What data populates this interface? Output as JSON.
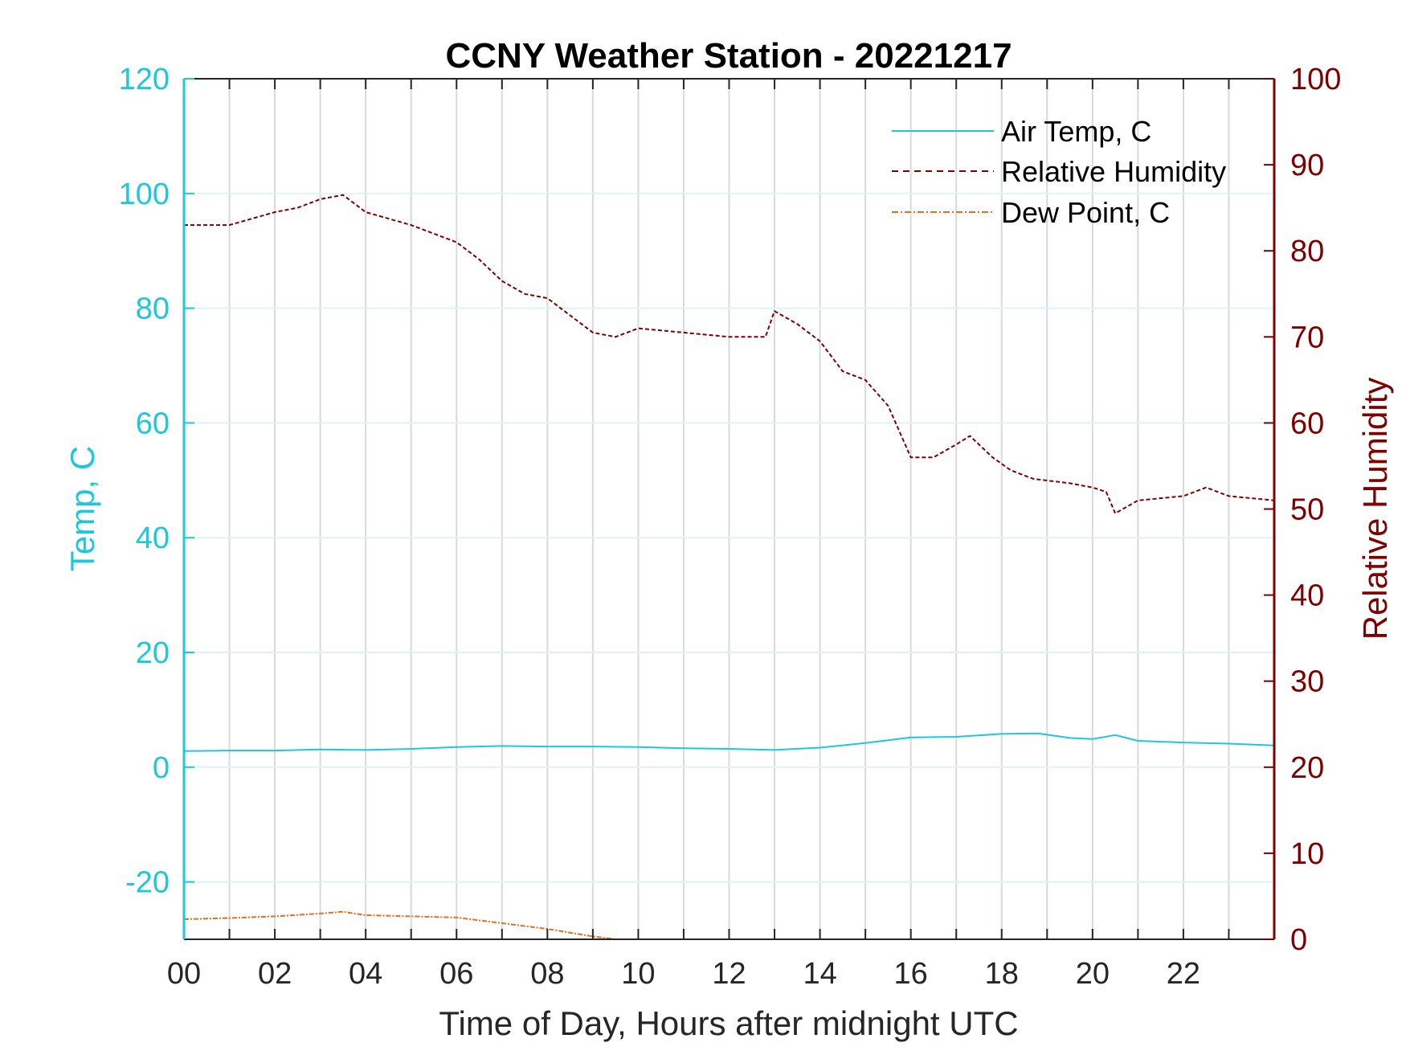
{
  "chart_data": {
    "type": "line",
    "title": "CCNY Weather Station - 20221217",
    "xlabel": "Time of Day, Hours after midnight UTC",
    "ylabel_left": "Temp, C",
    "ylabel_right": "Relative Humidity",
    "xlim": [
      0,
      24
    ],
    "ylim_left": [
      -30,
      120
    ],
    "ylim_right": [
      0,
      100
    ],
    "x_ticks": [
      0,
      2,
      4,
      6,
      8,
      10,
      12,
      14,
      16,
      18,
      20,
      22
    ],
    "x_tick_labels": [
      "00",
      "02",
      "04",
      "06",
      "08",
      "10",
      "12",
      "14",
      "16",
      "18",
      "20",
      "22"
    ],
    "y_left_ticks": [
      -20,
      0,
      20,
      40,
      60,
      80,
      100,
      120
    ],
    "y_left_tick_labels": [
      "-20",
      "0",
      "20",
      "40",
      "60",
      "80",
      "100",
      "120"
    ],
    "y_right_ticks": [
      0,
      10,
      20,
      30,
      40,
      50,
      60,
      70,
      80,
      90,
      100
    ],
    "y_right_tick_labels": [
      "0",
      "10",
      "20",
      "30",
      "40",
      "50",
      "60",
      "70",
      "80",
      "90",
      "100"
    ],
    "grid": true,
    "legend_position": "top-right",
    "colors": {
      "air_temp": "#1ec8dc",
      "humidity": "#800000",
      "dew_point": "#e2701e"
    },
    "series": [
      {
        "name": "Air Temp, C",
        "axis": "left",
        "style": "solid",
        "x": [
          0,
          1,
          2,
          3,
          4,
          5,
          6,
          7,
          8,
          9,
          10,
          11,
          12,
          13,
          14,
          15,
          16,
          17,
          18,
          18.8,
          19.5,
          20,
          20.5,
          21,
          22,
          23,
          24
        ],
        "values": [
          2.8,
          2.9,
          2.9,
          3.1,
          3.0,
          3.2,
          3.5,
          3.7,
          3.6,
          3.6,
          3.5,
          3.3,
          3.2,
          3.0,
          3.4,
          4.2,
          5.2,
          5.3,
          5.8,
          5.9,
          5.1,
          4.9,
          5.6,
          4.6,
          4.3,
          4.1,
          3.8
        ]
      },
      {
        "name": "Relative Humidity",
        "axis": "right",
        "style": "dashed",
        "x": [
          0,
          0.5,
          1,
          2,
          2.5,
          3,
          3.5,
          4,
          5,
          6,
          6.5,
          7,
          7.5,
          8,
          9,
          9.5,
          10,
          11,
          12,
          12.8,
          13,
          13.5,
          14,
          14.5,
          15,
          15.5,
          16,
          16.5,
          17,
          17.3,
          17.8,
          18.2,
          18.7,
          19.5,
          20,
          20.3,
          20.5,
          21,
          22,
          22.5,
          23,
          24
        ],
        "values": [
          83,
          83,
          83,
          84.5,
          85,
          86,
          86.5,
          84.5,
          83,
          81,
          79,
          76.5,
          75,
          74.5,
          70.5,
          70,
          71,
          70.5,
          70,
          70,
          73,
          71.5,
          69.5,
          66,
          65,
          62,
          56,
          56,
          57.5,
          58.5,
          56,
          54.5,
          53.5,
          53,
          52.5,
          52,
          49.5,
          51,
          51.5,
          52.5,
          51.5,
          51
        ]
      },
      {
        "name": "Dew Point, C",
        "axis": "left",
        "style": "dashdot",
        "x": [
          0,
          1,
          2,
          3,
          3.5,
          4,
          5,
          6,
          7,
          8,
          9,
          9.5,
          10.5
        ],
        "values": [
          -26.5,
          -26.3,
          -26.0,
          -25.5,
          -25.2,
          -25.8,
          -26.0,
          -26.2,
          -27.2,
          -28.2,
          -29.5,
          -30,
          -30
        ]
      }
    ]
  }
}
